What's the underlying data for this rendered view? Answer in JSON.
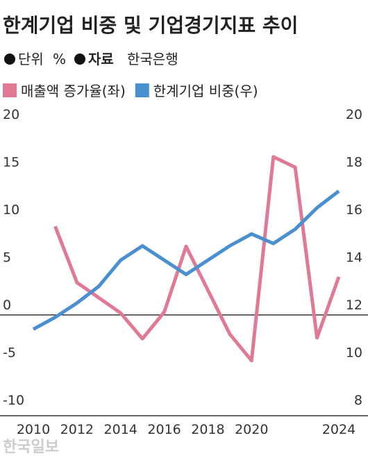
{
  "chart_data": {
    "type": "line",
    "title": "한계기업 비중 및 기업경기지표 추이",
    "unit_label": "단위",
    "unit": "%",
    "source_label": "자료",
    "source": "한국은행",
    "watermark": "한국일보",
    "x": [
      2010,
      2011,
      2012,
      2013,
      2014,
      2015,
      2016,
      2017,
      2018,
      2019,
      2020,
      2021,
      2022,
      2023,
      2024
    ],
    "xlim": [
      2010,
      2024
    ],
    "xticks": [
      2010,
      2012,
      2014,
      2016,
      2018,
      2020,
      2024
    ],
    "ylim": [
      -10,
      20
    ],
    "yticks": [
      -10,
      -5,
      0,
      5,
      10,
      15,
      20
    ],
    "y2lim": [
      8,
      20
    ],
    "y2ticks": [
      8,
      10,
      12,
      14,
      16,
      18,
      20
    ],
    "series": [
      {
        "name": "매출액 증가율(좌)",
        "color": "#e07a94",
        "values": [
          null,
          9.3,
          3.4,
          1.8,
          0.2,
          -2.5,
          0.3,
          7.2,
          2.6,
          -2.0,
          -4.8,
          16.6,
          15.5,
          -2.4,
          4.0
        ]
      },
      {
        "name": "한계기업 비중(우)",
        "color": "#4a8fd0",
        "axis": "y2",
        "values": [
          11.4,
          11.9,
          12.5,
          13.2,
          14.3,
          14.9,
          14.3,
          13.7,
          14.3,
          14.9,
          15.4,
          15.0,
          15.6,
          16.5,
          17.2
        ]
      }
    ]
  }
}
